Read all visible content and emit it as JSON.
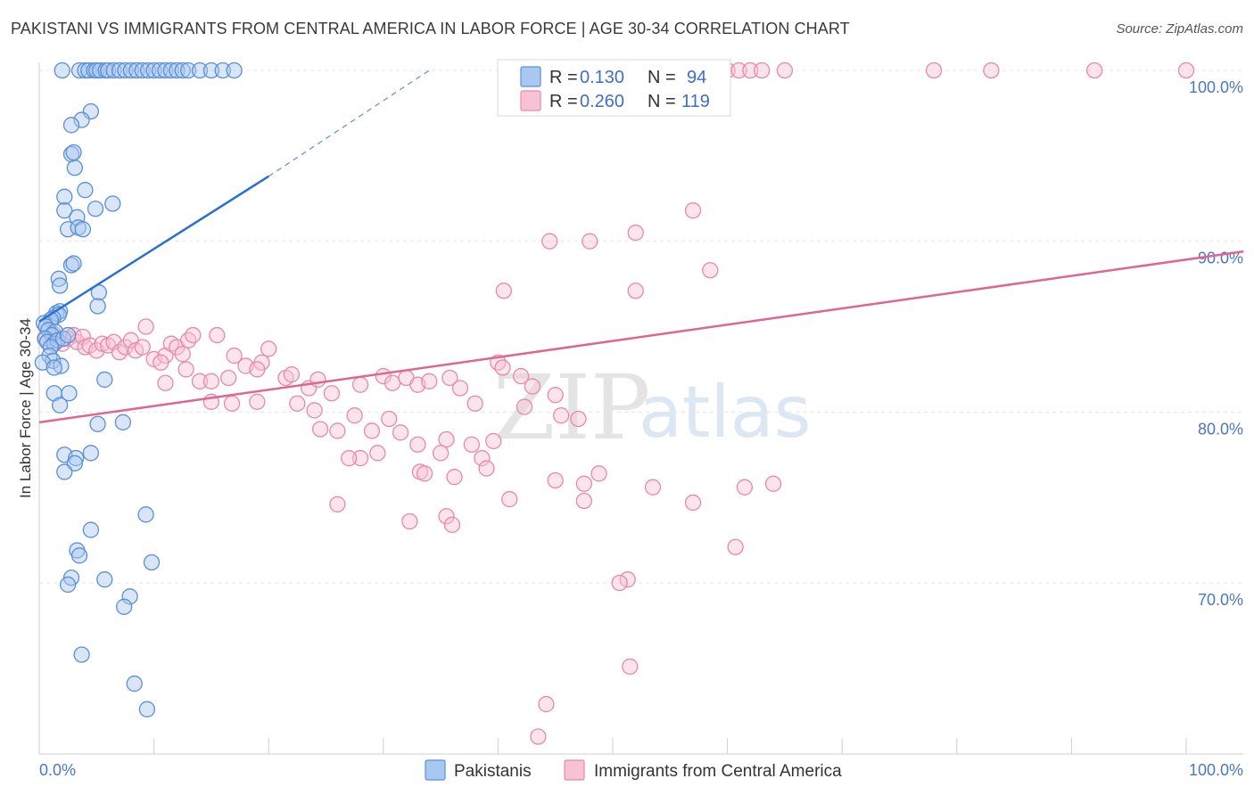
{
  "title": "PAKISTANI VS IMMIGRANTS FROM CENTRAL AMERICA IN LABOR FORCE | AGE 30-34 CORRELATION CHART",
  "source": "Source: ZipAtlas.com",
  "watermark": {
    "zip": "ZIP",
    "atlas": "atlas"
  },
  "colors": {
    "blue_fill": "#a9c8f0",
    "blue_stroke": "#5b8fd8",
    "blue_line": "#2a6fd0",
    "pink_fill": "#f7c3d4",
    "pink_stroke": "#e889a8",
    "pink_line": "#e06592",
    "tick": "#4a78c0",
    "grid": "#e6e6e6"
  },
  "legend": {
    "rows": [
      {
        "r_label": "R = ",
        "r_value": "0.130",
        "n_label": "N = ",
        "n_value": "94"
      },
      {
        "r_label": "R = ",
        "r_value": "0.260",
        "n_label": "N = ",
        "n_value": "119"
      }
    ]
  },
  "chart_data": {
    "type": "scatter",
    "title": "PAKISTANI VS IMMIGRANTS FROM CENTRAL AMERICA IN LABOR FORCE | AGE 30-34 CORRELATION CHART",
    "xlabel": "",
    "ylabel": "In Labor Force | Age 30-34",
    "xlim": [
      0,
      105
    ],
    "ylim": [
      60.5,
      101
    ],
    "x_tick_labels": [
      "0.0%",
      "100.0%"
    ],
    "y_ticks": [
      {
        "value": 70,
        "label": "70.0%"
      },
      {
        "value": 80,
        "label": "80.0%"
      },
      {
        "value": 90,
        "label": "90.0%"
      },
      {
        "value": 100,
        "label": "100.0%"
      }
    ],
    "legend_bottom": [
      "Pakistanis",
      "Immigrants from Central America"
    ],
    "series": [
      {
        "name": "Pakistanis",
        "r": 0.13,
        "n": 94,
        "trend": {
          "x0": 0,
          "y0": 85.3,
          "x1": 20,
          "y1": 93.8,
          "dash_to_x": 34,
          "dash_to_y": 100
        },
        "points": [
          [
            2,
            100
          ],
          [
            3.5,
            100
          ],
          [
            4,
            100
          ],
          [
            4.3,
            100
          ],
          [
            4.8,
            100
          ],
          [
            5,
            100
          ],
          [
            5.3,
            100
          ],
          [
            5.8,
            100
          ],
          [
            6,
            100
          ],
          [
            6.5,
            100
          ],
          [
            7,
            100
          ],
          [
            7.5,
            100
          ],
          [
            8,
            100
          ],
          [
            8.5,
            100
          ],
          [
            9,
            100
          ],
          [
            9.5,
            100
          ],
          [
            10,
            100
          ],
          [
            10.5,
            100
          ],
          [
            11,
            100
          ],
          [
            11.5,
            100
          ],
          [
            12,
            100
          ],
          [
            12.5,
            100
          ],
          [
            13,
            100
          ],
          [
            14,
            100
          ],
          [
            15,
            100
          ],
          [
            16,
            100
          ],
          [
            17,
            100
          ],
          [
            4.5,
            97.6
          ],
          [
            3.7,
            97.1
          ],
          [
            2.8,
            96.8
          ],
          [
            2.8,
            95.1
          ],
          [
            3,
            95.2
          ],
          [
            3.1,
            94.3
          ],
          [
            4,
            93
          ],
          [
            2.2,
            92.6
          ],
          [
            6.4,
            92.2
          ],
          [
            4.9,
            91.9
          ],
          [
            2.2,
            91.8
          ],
          [
            3.3,
            91.4
          ],
          [
            2.5,
            90.7
          ],
          [
            3.4,
            90.8
          ],
          [
            3.8,
            90.7
          ],
          [
            2.8,
            88.6
          ],
          [
            3,
            88.7
          ],
          [
            1.7,
            87.8
          ],
          [
            1.8,
            87.4
          ],
          [
            5.2,
            87
          ],
          [
            5.1,
            86.2
          ],
          [
            1.5,
            85.8
          ],
          [
            1.8,
            85.9
          ],
          [
            1.7,
            85.7
          ],
          [
            1.2,
            85.5
          ],
          [
            1,
            85.4
          ],
          [
            0.4,
            85.2
          ],
          [
            0.6,
            85
          ],
          [
            0.8,
            84.8
          ],
          [
            1.4,
            84.7
          ],
          [
            1.1,
            84.5
          ],
          [
            0.5,
            84.3
          ],
          [
            0.7,
            84.1
          ],
          [
            1.3,
            84
          ],
          [
            1.6,
            84.2
          ],
          [
            2.1,
            84.3
          ],
          [
            2.5,
            84.5
          ],
          [
            1,
            83.8
          ],
          [
            0.9,
            83.3
          ],
          [
            1.2,
            83
          ],
          [
            0.3,
            82.9
          ],
          [
            1.9,
            82.7
          ],
          [
            1.3,
            82.6
          ],
          [
            5.7,
            81.9
          ],
          [
            1.3,
            81.1
          ],
          [
            2.6,
            81.1
          ],
          [
            1.8,
            80.4
          ],
          [
            5.1,
            79.3
          ],
          [
            7.3,
            79.4
          ],
          [
            2.2,
            77.5
          ],
          [
            3.2,
            77.3
          ],
          [
            4.5,
            77.6
          ],
          [
            3.1,
            77
          ],
          [
            2.2,
            76.5
          ],
          [
            9.3,
            74
          ],
          [
            4.5,
            73.1
          ],
          [
            3.3,
            71.9
          ],
          [
            3.5,
            71.6
          ],
          [
            9.8,
            71.2
          ],
          [
            2.8,
            70.3
          ],
          [
            5.7,
            70.2
          ],
          [
            2.5,
            69.9
          ],
          [
            7.9,
            69.2
          ],
          [
            7.4,
            68.6
          ],
          [
            3.7,
            65.8
          ],
          [
            8.3,
            64.1
          ],
          [
            9.4,
            62.6
          ]
        ]
      },
      {
        "name": "Immigrants from Central America",
        "r": 0.26,
        "n": 119,
        "trend": {
          "x0": 0,
          "y0": 79.4,
          "x1": 105,
          "y1": 89.4
        },
        "points": [
          [
            48,
            100
          ],
          [
            49,
            100
          ],
          [
            50,
            100
          ],
          [
            51.5,
            100
          ],
          [
            54,
            100
          ],
          [
            56,
            100
          ],
          [
            58,
            100
          ],
          [
            60,
            100
          ],
          [
            61,
            100
          ],
          [
            62,
            100
          ],
          [
            63,
            100
          ],
          [
            65,
            100
          ],
          [
            78,
            100
          ],
          [
            83,
            100
          ],
          [
            92,
            100
          ],
          [
            100,
            100
          ],
          [
            57,
            91.8
          ],
          [
            52,
            90.5
          ],
          [
            44.5,
            90
          ],
          [
            48,
            90
          ],
          [
            58.5,
            88.3
          ],
          [
            40.5,
            87.1
          ],
          [
            52,
            87.1
          ],
          [
            0.6,
            84.3
          ],
          [
            1.2,
            84.6
          ],
          [
            1.6,
            84.2
          ],
          [
            2,
            84
          ],
          [
            2.5,
            84.3
          ],
          [
            3,
            84.5
          ],
          [
            3.3,
            84.1
          ],
          [
            3.8,
            84.4
          ],
          [
            4,
            83.8
          ],
          [
            4.4,
            83.9
          ],
          [
            5,
            83.6
          ],
          [
            5.5,
            84
          ],
          [
            6,
            83.9
          ],
          [
            6.5,
            84.1
          ],
          [
            7,
            83.5
          ],
          [
            7.5,
            83.8
          ],
          [
            8,
            84.2
          ],
          [
            8.4,
            83.6
          ],
          [
            9,
            83.8
          ],
          [
            9.3,
            85
          ],
          [
            10,
            83.1
          ],
          [
            11,
            83.3
          ],
          [
            11.5,
            84
          ],
          [
            12,
            83.8
          ],
          [
            12.5,
            83.4
          ],
          [
            13,
            84.2
          ],
          [
            13.4,
            84.5
          ],
          [
            15.5,
            84.5
          ],
          [
            17,
            83.3
          ],
          [
            18,
            82.7
          ],
          [
            19.4,
            82.9
          ],
          [
            20,
            83.7
          ],
          [
            12.8,
            82.5
          ],
          [
            10.6,
            82.9
          ],
          [
            11,
            81.7
          ],
          [
            14,
            81.8
          ],
          [
            15,
            81.8
          ],
          [
            16.5,
            82
          ],
          [
            19,
            82.5
          ],
          [
            21.5,
            82
          ],
          [
            22,
            82.2
          ],
          [
            23.5,
            81.4
          ],
          [
            24.3,
            81.9
          ],
          [
            25.5,
            81.1
          ],
          [
            28,
            81.6
          ],
          [
            30,
            82.1
          ],
          [
            30.8,
            81.7
          ],
          [
            32,
            82
          ],
          [
            33,
            81.6
          ],
          [
            34,
            81.8
          ],
          [
            35.8,
            82
          ],
          [
            36.7,
            81.4
          ],
          [
            40,
            82.9
          ],
          [
            40.4,
            82.6
          ],
          [
            42,
            82.1
          ],
          [
            43,
            81.5
          ],
          [
            45,
            81
          ],
          [
            38,
            80.5
          ],
          [
            42.3,
            80.3
          ],
          [
            45.5,
            79.8
          ],
          [
            47,
            79.6
          ],
          [
            15,
            80.6
          ],
          [
            16.8,
            80.5
          ],
          [
            19,
            80.6
          ],
          [
            22.5,
            80.5
          ],
          [
            24,
            80.1
          ],
          [
            27.5,
            79.8
          ],
          [
            30.5,
            79.6
          ],
          [
            24.5,
            79
          ],
          [
            26,
            78.9
          ],
          [
            29,
            78.9
          ],
          [
            31.5,
            78.8
          ],
          [
            28,
            77.3
          ],
          [
            27,
            77.3
          ],
          [
            29.5,
            77.6
          ],
          [
            33,
            78.1
          ],
          [
            35.5,
            78.4
          ],
          [
            37.7,
            78.1
          ],
          [
            39.6,
            78.3
          ],
          [
            35,
            77.6
          ],
          [
            38.6,
            77.3
          ],
          [
            33.2,
            76.5
          ],
          [
            33.6,
            76.4
          ],
          [
            36.2,
            76.2
          ],
          [
            39,
            76.7
          ],
          [
            45,
            76
          ],
          [
            47.5,
            75.8
          ],
          [
            48.8,
            76.4
          ],
          [
            41,
            74.9
          ],
          [
            47.5,
            74.8
          ],
          [
            53.5,
            75.6
          ],
          [
            57,
            74.7
          ],
          [
            61.5,
            75.6
          ],
          [
            64,
            75.8
          ],
          [
            32.3,
            73.6
          ],
          [
            35.5,
            73.9
          ],
          [
            36,
            73.4
          ],
          [
            26,
            74.6
          ],
          [
            60.7,
            72.1
          ],
          [
            51.3,
            70.2
          ],
          [
            50.6,
            70
          ],
          [
            51.5,
            65.1
          ],
          [
            44.2,
            62.9
          ],
          [
            43.5,
            61
          ]
        ]
      }
    ]
  }
}
